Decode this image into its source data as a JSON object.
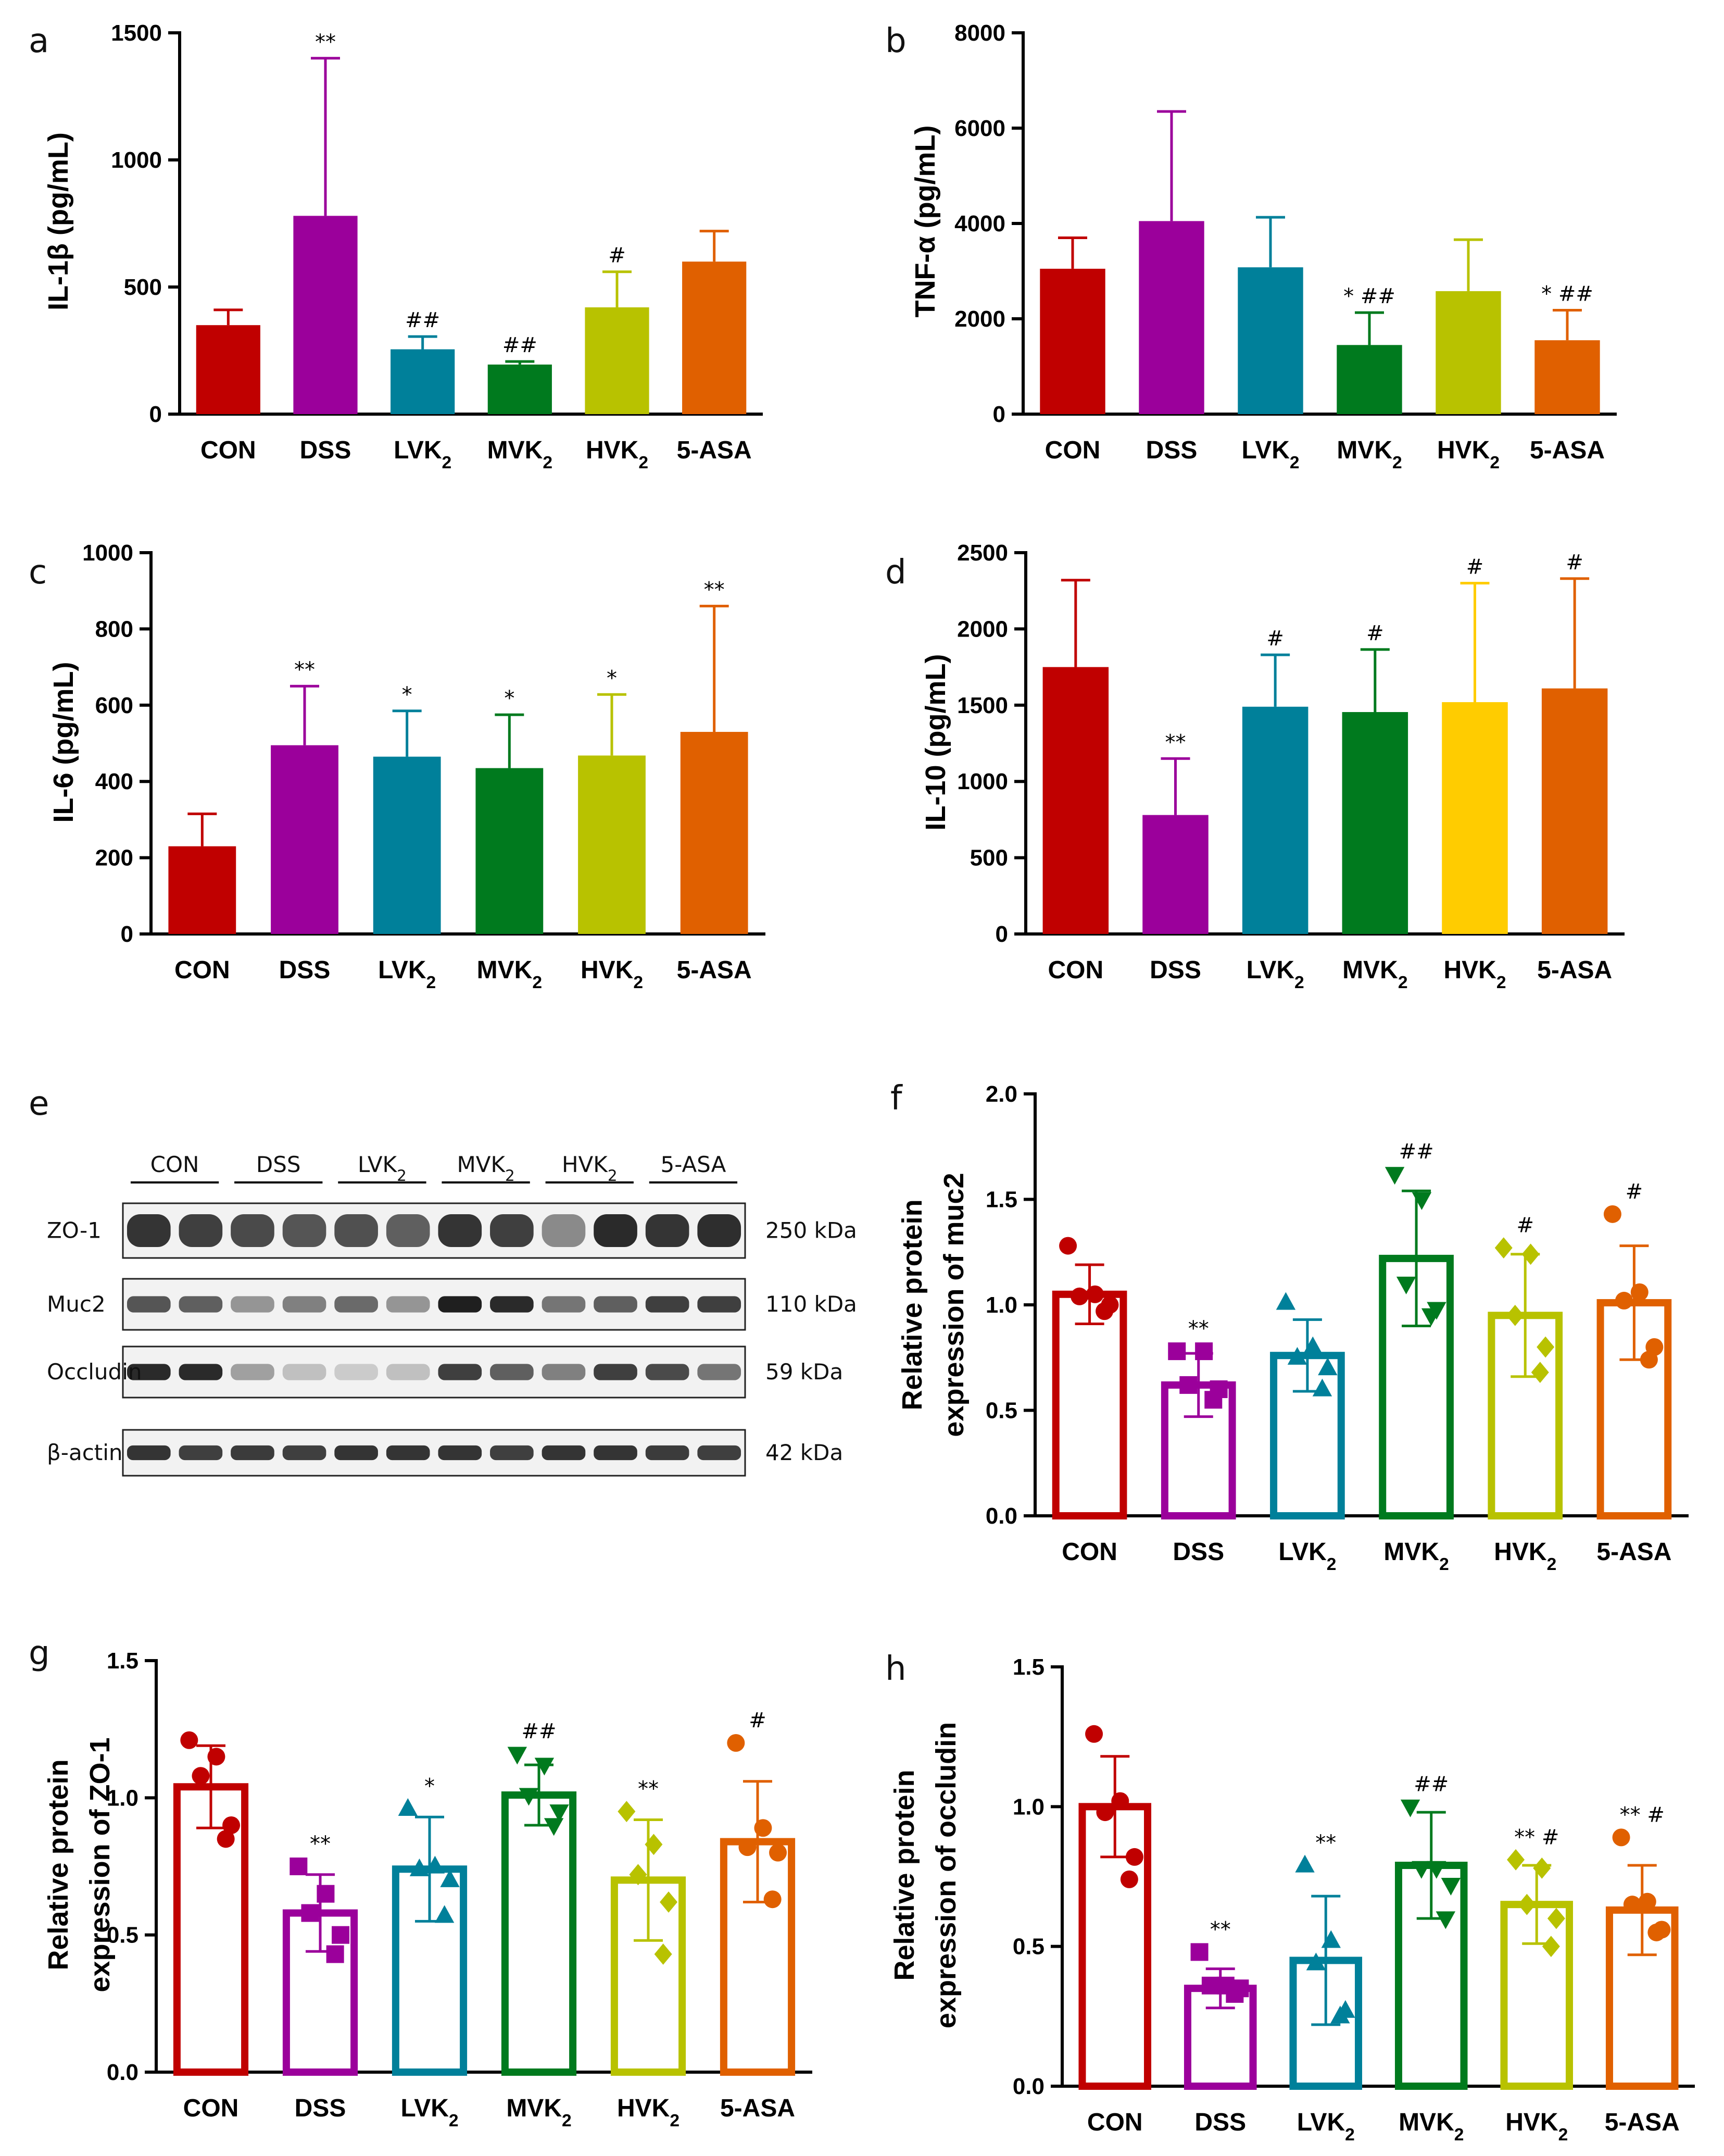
{
  "chart_data": [
    {
      "panel": "a",
      "type": "bar",
      "style": "filled",
      "ylabel": "IL-1β (pg/mL)",
      "ylim": [
        0,
        1500
      ],
      "yticks": [
        0,
        500,
        1000,
        1500
      ],
      "categories": [
        "CON",
        "DSS",
        "LVK2",
        "MVK2",
        "HVK2",
        "5-ASA"
      ],
      "values": [
        350,
        780,
        255,
        195,
        420,
        600
      ],
      "errors": [
        60,
        620,
        50,
        12,
        140,
        120
      ],
      "annotations": [
        "",
        "**",
        "##",
        "##",
        "#",
        ""
      ]
    },
    {
      "panel": "b",
      "type": "bar",
      "style": "filled",
      "ylabel": "TNF-α (pg/mL)",
      "ylim": [
        0,
        8000
      ],
      "yticks": [
        0,
        2000,
        4000,
        6000,
        8000
      ],
      "categories": [
        "CON",
        "DSS",
        "LVK2",
        "MVK2",
        "HVK2",
        "5-ASA"
      ],
      "values": [
        3050,
        4050,
        3080,
        1450,
        2580,
        1550
      ],
      "errors": [
        650,
        2300,
        1050,
        680,
        1080,
        630
      ],
      "annotations": [
        "",
        "",
        "",
        "*##",
        "",
        "*##"
      ]
    },
    {
      "panel": "c",
      "type": "bar",
      "style": "filled",
      "ylabel": "IL-6 (pg/mL)",
      "ylim": [
        0,
        1000
      ],
      "yticks": [
        0,
        200,
        400,
        600,
        800,
        1000
      ],
      "categories": [
        "CON",
        "DSS",
        "LVK2",
        "MVK2",
        "HVK2",
        "5-ASA"
      ],
      "values": [
        230,
        495,
        465,
        435,
        468,
        530
      ],
      "errors": [
        85,
        155,
        120,
        140,
        160,
        330
      ],
      "annotations": [
        "",
        "**",
        "*",
        "*",
        "*",
        "**"
      ]
    },
    {
      "panel": "d",
      "type": "bar",
      "style": "filled",
      "ylabel": "IL-10 (pg/mL)",
      "ylim": [
        0,
        2500
      ],
      "yticks": [
        0,
        500,
        1000,
        1500,
        2000,
        2500
      ],
      "categories": [
        "CON",
        "DSS",
        "LVK2",
        "MVK2",
        "HVK2",
        "5-ASA"
      ],
      "values": [
        1750,
        780,
        1490,
        1455,
        1520,
        1610
      ],
      "errors": [
        570,
        370,
        340,
        410,
        780,
        720
      ],
      "annotations": [
        "",
        "**",
        "#",
        "#",
        "#",
        "#"
      ]
    },
    {
      "panel": "f",
      "type": "bar",
      "style": "outline-points",
      "ylabel": [
        "Relative protein",
        "expression of muc2"
      ],
      "ylim": [
        0,
        2.0
      ],
      "yticks": [
        0.0,
        0.5,
        1.0,
        1.5,
        2.0
      ],
      "categories": [
        "CON",
        "DSS",
        "LVK2",
        "MVK2",
        "HVK2",
        "5-ASA"
      ],
      "values": [
        1.05,
        0.62,
        0.76,
        1.22,
        0.95,
        1.01
      ],
      "errors": [
        0.14,
        0.15,
        0.17,
        0.32,
        0.29,
        0.27
      ],
      "points": [
        [
          1.28,
          1.05,
          1.04,
          1.0,
          0.97
        ],
        [
          0.78,
          0.78,
          0.62,
          0.6,
          0.55
        ],
        [
          1.01,
          0.8,
          0.75,
          0.7,
          0.6
        ],
        [
          1.62,
          1.5,
          1.1,
          0.98,
          0.95
        ],
        [
          1.27,
          1.24,
          0.95,
          0.8,
          0.68
        ],
        [
          1.43,
          1.06,
          1.02,
          0.8,
          0.74
        ]
      ],
      "annotations": [
        "",
        "**",
        "",
        "##",
        "#",
        "#"
      ]
    },
    {
      "panel": "g",
      "type": "bar",
      "style": "outline-points",
      "ylabel": [
        "Relative protein",
        "expression of ZO-1"
      ],
      "ylim": [
        0,
        1.5
      ],
      "yticks": [
        0.0,
        0.5,
        1.0,
        1.5
      ],
      "categories": [
        "CON",
        "DSS",
        "LVK2",
        "MVK2",
        "HVK2",
        "5-ASA"
      ],
      "values": [
        1.04,
        0.58,
        0.74,
        1.01,
        0.7,
        0.84
      ],
      "errors": [
        0.15,
        0.14,
        0.19,
        0.11,
        0.22,
        0.22
      ],
      "points": [
        [
          1.21,
          1.15,
          1.08,
          0.9,
          0.85
        ],
        [
          0.75,
          0.65,
          0.58,
          0.5,
          0.43
        ],
        [
          0.96,
          0.75,
          0.74,
          0.7,
          0.57
        ],
        [
          1.16,
          1.12,
          1.01,
          0.95,
          0.9
        ],
        [
          0.95,
          0.83,
          0.72,
          0.62,
          0.43
        ],
        [
          1.2,
          0.89,
          0.82,
          0.8,
          0.63
        ]
      ],
      "annotations": [
        "",
        "**",
        "*",
        "##",
        "**",
        "#"
      ]
    },
    {
      "panel": "h",
      "type": "bar",
      "style": "outline-points",
      "ylabel": [
        "Relative protein",
        "expression of occludin"
      ],
      "ylim": [
        0,
        1.5
      ],
      "yticks": [
        0.0,
        0.5,
        1.0,
        1.5
      ],
      "categories": [
        "CON",
        "DSS",
        "LVK2",
        "MVK2",
        "HVK2",
        "5-ASA"
      ],
      "values": [
        1.0,
        0.35,
        0.45,
        0.79,
        0.65,
        0.63
      ],
      "errors": [
        0.18,
        0.07,
        0.23,
        0.19,
        0.14,
        0.16
      ],
      "points": [
        [
          1.26,
          1.02,
          0.98,
          0.82,
          0.74
        ],
        [
          0.48,
          0.36,
          0.36,
          0.35,
          0.33
        ],
        [
          0.79,
          0.52,
          0.44,
          0.27,
          0.25
        ],
        [
          1.0,
          0.78,
          0.78,
          0.72,
          0.6
        ],
        [
          0.81,
          0.78,
          0.65,
          0.6,
          0.5
        ],
        [
          0.89,
          0.66,
          0.65,
          0.56,
          0.55
        ]
      ],
      "annotations": [
        "",
        "**",
        "**",
        "##",
        "**#",
        "**#"
      ]
    }
  ],
  "colors": {
    "CON": "#c00000",
    "DSS": "#9b009b",
    "LVK2": "#00809a",
    "MVK2": "#007a1e",
    "HVK2_a": "#b8c200",
    "HVK2_d": "#ffcc00",
    "5-ASA": "#e06000"
  },
  "panel_letters": [
    "a",
    "b",
    "c",
    "d",
    "e",
    "f",
    "g",
    "h"
  ],
  "western_blot": {
    "groups": [
      "CON",
      "DSS",
      "LVK2",
      "MVK2",
      "HVK2",
      "5-ASA"
    ],
    "rows": [
      {
        "protein": "ZO-1",
        "size": "250 kDa",
        "intensities": [
          0.85,
          0.8,
          0.75,
          0.7,
          0.72,
          0.65,
          0.85,
          0.8,
          0.45,
          0.9,
          0.85,
          0.88
        ]
      },
      {
        "protein": "Muc2",
        "size": "110 kDa",
        "intensities": [
          0.7,
          0.65,
          0.4,
          0.5,
          0.6,
          0.4,
          0.95,
          0.9,
          0.55,
          0.65,
          0.8,
          0.8
        ]
      },
      {
        "protein": "Occludin",
        "size": "59 kDa",
        "intensities": [
          0.9,
          0.9,
          0.35,
          0.2,
          0.15,
          0.2,
          0.8,
          0.65,
          0.5,
          0.8,
          0.75,
          0.55
        ]
      },
      {
        "protein": "β-actin",
        "size": "42 kDa",
        "intensities": [
          0.85,
          0.8,
          0.82,
          0.8,
          0.85,
          0.85,
          0.85,
          0.8,
          0.85,
          0.85,
          0.82,
          0.8
        ]
      }
    ]
  }
}
